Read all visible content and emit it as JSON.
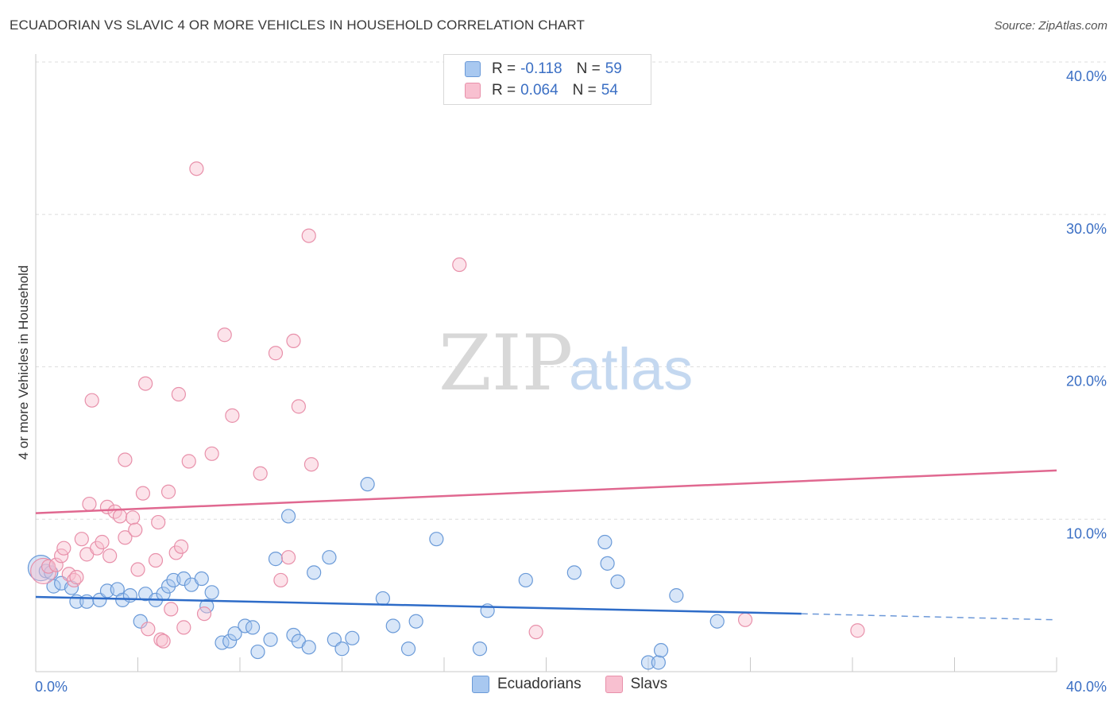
{
  "title": "ECUADORIAN VS SLAVIC 4 OR MORE VEHICLES IN HOUSEHOLD CORRELATION CHART",
  "source": "Source: ZipAtlas.com",
  "watermark": {
    "part1": "ZIP",
    "part2": "atlas"
  },
  "legend": {
    "rows": [
      {
        "r_label": "R =",
        "r_value": "-0.118",
        "n_label": "N =",
        "n_value": "59",
        "color": "#a8c8f0",
        "border": "#6a9ad8"
      },
      {
        "r_label": "R =",
        "r_value": "0.064",
        "n_label": "N =",
        "n_value": "54",
        "color": "#f8c0d0",
        "border": "#e890aa"
      }
    ]
  },
  "bottom_legend": [
    {
      "label": "Ecuadorians",
      "color": "#a8c8f0",
      "border": "#6a9ad8"
    },
    {
      "label": "Slavs",
      "color": "#f8c0d0",
      "border": "#e890aa"
    }
  ],
  "chart_data": {
    "type": "scatter",
    "title": "ECUADORIAN VS SLAVIC 4 OR MORE VEHICLES IN HOUSEHOLD CORRELATION CHART",
    "xlabel": "",
    "ylabel": "4 or more Vehicles in Household",
    "xlim": [
      0,
      40
    ],
    "ylim": [
      0,
      40
    ],
    "x_tick_labels": [
      "0.0%",
      "40.0%"
    ],
    "y_ticks": [
      10,
      20,
      30,
      40
    ],
    "y_tick_labels": [
      "10.0%",
      "20.0%",
      "30.0%",
      "40.0%"
    ],
    "grid": true,
    "series": [
      {
        "name": "Ecuadorians",
        "color": "#6a9ad8",
        "fill": "#a8c8f0",
        "trend": {
          "x0": 0,
          "y0": 4.9,
          "x1": 30.0,
          "y1": 3.8,
          "dash_x1": 40,
          "dash_y1": 3.4,
          "color": "#2e6cc8"
        },
        "points": [
          [
            0.2,
            6.8
          ],
          [
            0.4,
            6.6
          ],
          [
            0.6,
            6.5
          ],
          [
            0.7,
            5.6
          ],
          [
            1.0,
            5.8
          ],
          [
            1.4,
            5.5
          ],
          [
            1.6,
            4.6
          ],
          [
            2.0,
            4.6
          ],
          [
            2.5,
            4.7
          ],
          [
            2.8,
            5.3
          ],
          [
            3.2,
            5.4
          ],
          [
            3.4,
            4.7
          ],
          [
            3.7,
            5.0
          ],
          [
            4.1,
            3.3
          ],
          [
            4.3,
            5.1
          ],
          [
            4.7,
            4.7
          ],
          [
            5.0,
            5.1
          ],
          [
            5.2,
            5.6
          ],
          [
            5.4,
            6.0
          ],
          [
            5.8,
            6.1
          ],
          [
            6.1,
            5.7
          ],
          [
            6.5,
            6.1
          ],
          [
            6.7,
            4.3
          ],
          [
            6.9,
            5.2
          ],
          [
            7.3,
            1.9
          ],
          [
            7.6,
            2.0
          ],
          [
            7.8,
            2.5
          ],
          [
            8.2,
            3.0
          ],
          [
            8.5,
            2.9
          ],
          [
            8.7,
            1.3
          ],
          [
            9.2,
            2.1
          ],
          [
            9.4,
            7.4
          ],
          [
            9.9,
            10.2
          ],
          [
            10.1,
            2.4
          ],
          [
            10.3,
            2.0
          ],
          [
            10.7,
            1.6
          ],
          [
            10.9,
            6.5
          ],
          [
            11.5,
            7.5
          ],
          [
            11.7,
            2.1
          ],
          [
            12.0,
            1.5
          ],
          [
            12.4,
            2.2
          ],
          [
            13.0,
            12.3
          ],
          [
            13.6,
            4.8
          ],
          [
            14.0,
            3.0
          ],
          [
            14.6,
            1.5
          ],
          [
            14.9,
            3.3
          ],
          [
            15.7,
            8.7
          ],
          [
            17.4,
            1.5
          ],
          [
            17.7,
            4.0
          ],
          [
            19.2,
            6.0
          ],
          [
            21.1,
            6.5
          ],
          [
            22.3,
            8.5
          ],
          [
            22.4,
            7.1
          ],
          [
            22.8,
            5.9
          ],
          [
            24.0,
            0.6
          ],
          [
            24.4,
            0.6
          ],
          [
            24.5,
            1.4
          ],
          [
            25.1,
            5.0
          ],
          [
            26.7,
            3.3
          ]
        ]
      },
      {
        "name": "Slavs",
        "color": "#e890aa",
        "fill": "#f8c0d0",
        "trend": {
          "x0": 0,
          "y0": 10.4,
          "x1": 40,
          "y1": 13.2,
          "color": "#e06890"
        },
        "points": [
          [
            0.3,
            6.6
          ],
          [
            0.5,
            6.9
          ],
          [
            0.8,
            7.0
          ],
          [
            1.0,
            7.6
          ],
          [
            1.1,
            8.1
          ],
          [
            1.3,
            6.4
          ],
          [
            1.5,
            6.0
          ],
          [
            1.6,
            6.2
          ],
          [
            1.8,
            8.7
          ],
          [
            2.0,
            7.7
          ],
          [
            2.1,
            11.0
          ],
          [
            2.2,
            17.8
          ],
          [
            2.4,
            8.1
          ],
          [
            2.6,
            8.5
          ],
          [
            2.8,
            10.8
          ],
          [
            2.9,
            7.6
          ],
          [
            3.1,
            10.5
          ],
          [
            3.3,
            10.2
          ],
          [
            3.5,
            8.8
          ],
          [
            3.5,
            13.9
          ],
          [
            3.8,
            10.1
          ],
          [
            3.9,
            9.3
          ],
          [
            4.0,
            6.7
          ],
          [
            4.2,
            11.7
          ],
          [
            4.3,
            18.9
          ],
          [
            4.4,
            2.8
          ],
          [
            4.7,
            7.3
          ],
          [
            4.8,
            9.8
          ],
          [
            4.9,
            2.1
          ],
          [
            5.0,
            2.0
          ],
          [
            5.2,
            11.8
          ],
          [
            5.3,
            4.1
          ],
          [
            5.5,
            7.8
          ],
          [
            5.6,
            18.2
          ],
          [
            5.7,
            8.2
          ],
          [
            5.8,
            2.9
          ],
          [
            6.0,
            13.8
          ],
          [
            6.3,
            33.0
          ],
          [
            6.6,
            3.8
          ],
          [
            6.9,
            14.3
          ],
          [
            7.4,
            22.1
          ],
          [
            7.7,
            16.8
          ],
          [
            8.8,
            13.0
          ],
          [
            9.4,
            20.9
          ],
          [
            9.6,
            6.0
          ],
          [
            9.9,
            7.5
          ],
          [
            10.1,
            21.7
          ],
          [
            10.3,
            17.4
          ],
          [
            10.7,
            28.6
          ],
          [
            10.8,
            13.6
          ],
          [
            16.6,
            26.7
          ],
          [
            19.6,
            2.6
          ],
          [
            27.8,
            3.4
          ],
          [
            32.2,
            2.7
          ]
        ]
      }
    ]
  }
}
